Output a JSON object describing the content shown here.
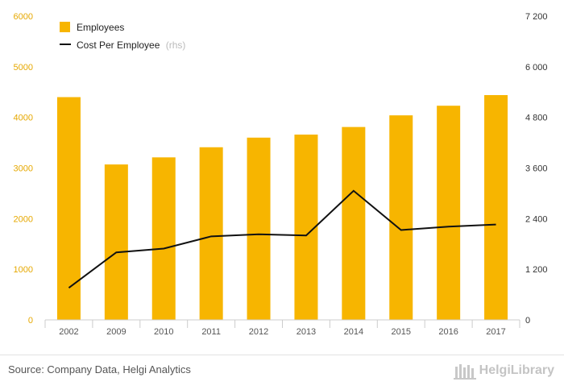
{
  "chart_data": {
    "type": "bar+line",
    "categories": [
      "2002",
      "2009",
      "2010",
      "2011",
      "2012",
      "2013",
      "2014",
      "2015",
      "2016",
      "2017"
    ],
    "series": [
      {
        "name": "Employees",
        "type": "bar",
        "axis": "left",
        "color": "#f7b500",
        "values": [
          4400,
          3070,
          3210,
          3410,
          3600,
          3660,
          3810,
          4040,
          4230,
          4440
        ]
      },
      {
        "name": "Cost Per Employee",
        "suffix": "(rhs)",
        "type": "line",
        "axis": "right",
        "color": "#111111",
        "values": [
          760,
          1600,
          1690,
          1980,
          2030,
          2000,
          3060,
          2130,
          2210,
          2260
        ]
      }
    ],
    "y_left": {
      "min": 0,
      "max": 6000,
      "ticks": [
        "0",
        "1000",
        "2000",
        "3000",
        "4000",
        "5000",
        "6000"
      ]
    },
    "y_right": {
      "min": 0,
      "max": 7200,
      "ticks": [
        "0",
        "1 200",
        "2 400",
        "3 600",
        "4 800",
        "6 000",
        "7 200"
      ]
    },
    "grid": false,
    "legend_position": "top-left"
  },
  "footer": {
    "source": "Source: Company Data, Helgi Analytics",
    "brand": "HelgiLibrary"
  }
}
